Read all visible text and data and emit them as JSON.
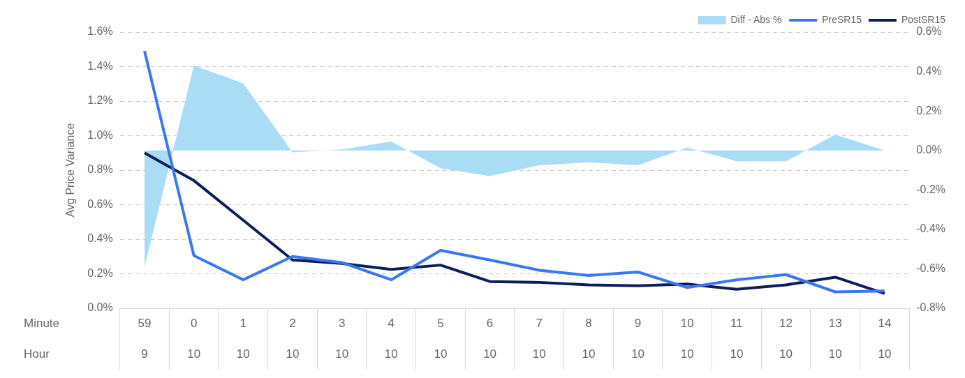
{
  "chart_data": {
    "type": "line",
    "ylabel": "Avg Price Variance",
    "categories": [
      "59\n9",
      "0\n10",
      "1\n10",
      "2\n10",
      "3\n10",
      "4\n10",
      "5\n10",
      "6\n10",
      "7\n10",
      "8\n10",
      "9\n10",
      "10\n10",
      "11\n10",
      "12\n10",
      "13\n10",
      "14\n10"
    ],
    "annotations": [
      "Minute",
      "Hour"
    ],
    "series": [
      {
        "name": "Diff - Abs %",
        "type": "area",
        "axis": "y2",
        "color": "#a9dcf5",
        "values": [
          -0.59,
          0.43,
          0.34,
          -0.01,
          0.005,
          0.045,
          -0.09,
          -0.13,
          -0.075,
          -0.06,
          -0.075,
          0.015,
          -0.055,
          -0.055,
          0.08,
          0.0
        ]
      },
      {
        "name": "PreSR15",
        "color": "#3a78f2",
        "values": [
          1.49,
          0.305,
          0.165,
          0.3,
          0.265,
          0.165,
          0.335,
          0.28,
          0.22,
          0.19,
          0.21,
          0.12,
          0.165,
          0.195,
          0.095,
          0.1
        ]
      },
      {
        "name": "PostSR15",
        "color": "#0c1d5e",
        "values": [
          0.9,
          0.74,
          0.51,
          0.28,
          0.26,
          0.225,
          0.25,
          0.155,
          0.15,
          0.135,
          0.13,
          0.14,
          0.11,
          0.135,
          0.18,
          0.085
        ]
      }
    ],
    "ylim": [
      0,
      1.6
    ],
    "yticks": [
      {
        "value": 0,
        "label": "0.0%"
      },
      {
        "value": 0.2,
        "label": "0.2%"
      },
      {
        "value": 0.4,
        "label": "0.4%"
      },
      {
        "value": 0.6,
        "label": "0.6%"
      },
      {
        "value": 0.8,
        "label": "0.8%"
      },
      {
        "value": 1.0,
        "label": "1.0%"
      },
      {
        "value": 1.2,
        "label": "1.2%"
      },
      {
        "value": 1.4,
        "label": "1.4%"
      },
      {
        "value": 1.6,
        "label": "1.6%"
      }
    ],
    "y2lim": [
      -0.8,
      0.6
    ],
    "y2ticks": [
      {
        "value": -0.8,
        "label": "-0.8%"
      },
      {
        "value": -0.6,
        "label": "-0.6%"
      },
      {
        "value": -0.4,
        "label": "-0.4%"
      },
      {
        "value": -0.2,
        "label": "-0.2%"
      },
      {
        "value": 0,
        "label": "0.0%"
      },
      {
        "value": 0.2,
        "label": "0.2%"
      },
      {
        "value": 0.4,
        "label": "0.4%"
      },
      {
        "value": 0.6,
        "label": "0.6%"
      }
    ],
    "grid": "y",
    "legend": "top right",
    "marker": "none",
    "line_style": "solid"
  }
}
